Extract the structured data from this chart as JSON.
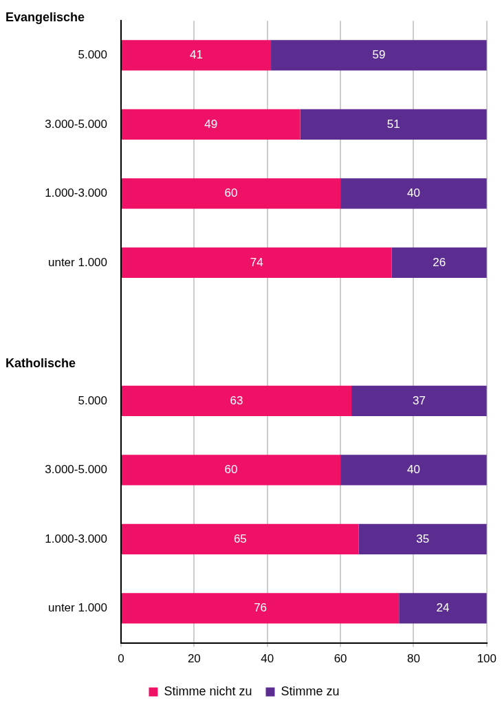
{
  "chart_data": {
    "type": "bar",
    "orientation": "horizontal",
    "stacked": true,
    "categories": [
      "5.000",
      "3.000-5.000",
      "1.000-3.000",
      "unter 1.000",
      null,
      "5.000",
      "3.000-5.000",
      "1.000-3.000",
      "unter 1.000"
    ],
    "series": [
      {
        "name": "Stimme nicht zu",
        "color": "#ee1166",
        "values": [
          41,
          49,
          60,
          74,
          null,
          63,
          60,
          65,
          76
        ]
      },
      {
        "name": "Stimme zu",
        "color": "#5c2d91",
        "values": [
          59,
          51,
          40,
          26,
          null,
          37,
          40,
          35,
          24
        ]
      }
    ],
    "xlim": [
      0,
      100
    ],
    "xticks": [
      0,
      20,
      40,
      60,
      80,
      100
    ],
    "grid": "x",
    "legend": "bottom",
    "data_labels": true,
    "annotations": [
      "Evangelische",
      "Katholische"
    ]
  }
}
